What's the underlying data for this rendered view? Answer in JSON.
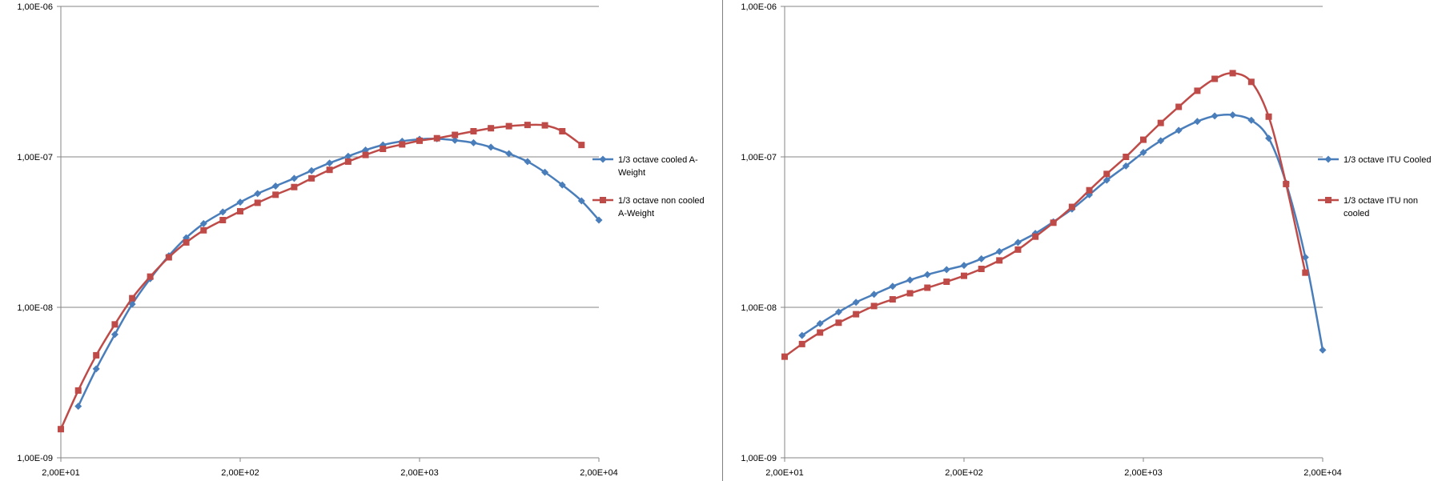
{
  "chart_data": [
    {
      "type": "line",
      "yscale": "log",
      "xscale": "log",
      "xlim": [
        20,
        20000
      ],
      "ylim": [
        1e-09,
        1e-06
      ],
      "x_ticks": [
        20,
        200,
        2000,
        20000
      ],
      "x_tick_labels": [
        "2,00E+01",
        "2,00E+02",
        "2,00E+03",
        "2,00E+04"
      ],
      "y_ticks": [
        1e-09,
        1e-08,
        1e-07,
        1e-06
      ],
      "y_tick_labels": [
        "1,00E-09",
        "1,00E-08",
        "1,00E-07",
        "1,00E-06"
      ],
      "grid": true,
      "legend_position": "right",
      "series": [
        {
          "name": "1/3 octave cooled A-Weight",
          "name_lines": [
            "1/3 octave cooled A-",
            "Weight"
          ],
          "color": "#4a7ebb",
          "marker": "diamond",
          "x": [
            25,
            31.5,
            40,
            50,
            63,
            80,
            100,
            125,
            160,
            200,
            250,
            315,
            400,
            500,
            630,
            800,
            1000,
            1250,
            1600,
            2000,
            2500,
            3150,
            4000,
            5000,
            6300,
            8000,
            10000,
            12500,
            16000,
            20000
          ],
          "y": [
            2.2e-09,
            3.9e-09,
            6.6e-09,
            1.05e-08,
            1.55e-08,
            2.2e-08,
            2.9e-08,
            3.6e-08,
            4.3e-08,
            5e-08,
            5.7e-08,
            6.4e-08,
            7.2e-08,
            8.1e-08,
            9.1e-08,
            1.01e-07,
            1.11e-07,
            1.2e-07,
            1.27e-07,
            1.31e-07,
            1.32e-07,
            1.29e-07,
            1.24e-07,
            1.16e-07,
            1.05e-07,
            9.3e-08,
            7.9e-08,
            6.5e-08,
            5.1e-08,
            3.8e-08
          ]
        },
        {
          "name": "1/3 octave non cooled A-Weight",
          "name_lines": [
            "1/3 octave non cooled",
            "A-Weight"
          ],
          "color": "#be4b48",
          "marker": "square",
          "x": [
            20,
            25,
            31.5,
            40,
            50,
            63,
            80,
            100,
            125,
            160,
            200,
            250,
            315,
            400,
            500,
            630,
            800,
            1000,
            1250,
            1600,
            2000,
            2500,
            3150,
            4000,
            5000,
            6300,
            8000,
            10000,
            12500,
            16000
          ],
          "y": [
            1.55e-09,
            2.8e-09,
            4.8e-09,
            7.7e-09,
            1.15e-08,
            1.6e-08,
            2.15e-08,
            2.7e-08,
            3.25e-08,
            3.8e-08,
            4.35e-08,
            4.95e-08,
            5.6e-08,
            6.3e-08,
            7.2e-08,
            8.2e-08,
            9.3e-08,
            1.03e-07,
            1.13e-07,
            1.21e-07,
            1.28e-07,
            1.33e-07,
            1.4e-07,
            1.48e-07,
            1.55e-07,
            1.6e-07,
            1.63e-07,
            1.62e-07,
            1.48e-07,
            1.2e-07
          ]
        }
      ]
    },
    {
      "type": "line",
      "yscale": "log",
      "xscale": "log",
      "xlim": [
        20,
        20000
      ],
      "ylim": [
        1e-09,
        1e-06
      ],
      "x_ticks": [
        20,
        200,
        2000,
        20000
      ],
      "x_tick_labels": [
        "2,00E+01",
        "2,00E+02",
        "2,00E+03",
        "2,00E+04"
      ],
      "y_ticks": [
        1e-09,
        1e-08,
        1e-07,
        1e-06
      ],
      "y_tick_labels": [
        "1,00E-09",
        "1,00E-08",
        "1,00E-07",
        "1,00E-06"
      ],
      "grid": true,
      "legend_position": "right",
      "series": [
        {
          "name": "1/3 octave ITU Cooled",
          "name_lines": [
            "1/3 octave ITU Cooled"
          ],
          "color": "#4a7ebb",
          "marker": "diamond",
          "x": [
            25,
            31.5,
            40,
            50,
            63,
            80,
            100,
            125,
            160,
            200,
            250,
            315,
            400,
            500,
            630,
            800,
            1000,
            1250,
            1600,
            2000,
            2500,
            3150,
            4000,
            5000,
            6300,
            8000,
            10000,
            12500,
            16000,
            20000
          ],
          "y": [
            6.5e-09,
            7.8e-09,
            9.3e-09,
            1.08e-08,
            1.22e-08,
            1.38e-08,
            1.52e-08,
            1.65e-08,
            1.78e-08,
            1.9e-08,
            2.1e-08,
            2.35e-08,
            2.7e-08,
            3.1e-08,
            3.7e-08,
            4.5e-08,
            5.6e-08,
            7e-08,
            8.7e-08,
            1.07e-07,
            1.28e-07,
            1.5e-07,
            1.72e-07,
            1.87e-07,
            1.9e-07,
            1.75e-07,
            1.33e-07,
            6.7e-08,
            2.15e-08,
            5.2e-09
          ]
        },
        {
          "name": "1/3 octave ITU non cooled",
          "name_lines": [
            "1/3 octave ITU non",
            "cooled"
          ],
          "color": "#be4b48",
          "marker": "square",
          "x": [
            20,
            25,
            31.5,
            40,
            50,
            63,
            80,
            100,
            125,
            160,
            200,
            250,
            315,
            400,
            500,
            630,
            800,
            1000,
            1250,
            1600,
            2000,
            2500,
            3150,
            4000,
            5000,
            6300,
            8000,
            10000,
            12500,
            16000
          ],
          "y": [
            4.7e-09,
            5.7e-09,
            6.8e-09,
            7.9e-09,
            9e-09,
            1.02e-08,
            1.13e-08,
            1.24e-08,
            1.35e-08,
            1.48e-08,
            1.62e-08,
            1.8e-08,
            2.05e-08,
            2.42e-08,
            2.95e-08,
            3.65e-08,
            4.65e-08,
            6e-08,
            7.7e-08,
            1e-07,
            1.3e-07,
            1.68e-07,
            2.15e-07,
            2.75e-07,
            3.3e-07,
            3.6e-07,
            3.15e-07,
            1.85e-07,
            6.6e-08,
            1.7e-08
          ]
        }
      ]
    }
  ]
}
